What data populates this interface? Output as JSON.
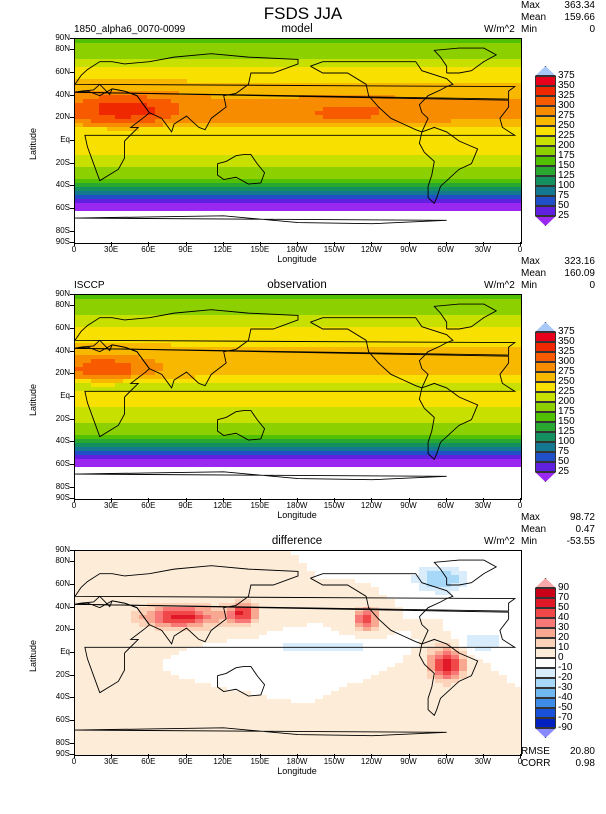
{
  "title": "FSDS JJA",
  "x_axis": {
    "label": "Longitude",
    "ticks": [
      "0",
      "30E",
      "60E",
      "90E",
      "120E",
      "150E",
      "180W",
      "150W",
      "120W",
      "90W",
      "60W",
      "30W",
      "0"
    ]
  },
  "y_axis": {
    "label": "Latitude",
    "ticks": [
      "90N",
      "80N",
      "60N",
      "40N",
      "20N",
      "Eq",
      "20S",
      "40S",
      "60S",
      "80S",
      "90S"
    ],
    "tick_lats": [
      90,
      80,
      60,
      40,
      20,
      0,
      -20,
      -40,
      -60,
      -80,
      -90
    ]
  },
  "panels": [
    {
      "id": "model",
      "left_label": "1850_alpha6_0070-0099",
      "title": "model",
      "units": "W/m^2",
      "stats": {
        "max_label": "Max",
        "max": "363.34",
        "mean_label": "Mean",
        "mean": "159.66",
        "min_label": "Min",
        "min": "0"
      },
      "colorbar": {
        "labels": [
          "375",
          "350",
          "325",
          "300",
          "275",
          "250",
          "225",
          "200",
          "175",
          "150",
          "125",
          "100",
          "75",
          "50",
          "25"
        ],
        "colors": [
          "#a8c8f8",
          "#e8001c",
          "#f02800",
          "#f85a00",
          "#f88c00",
          "#f8b800",
          "#f8e000",
          "#c8e000",
          "#8cd000",
          "#50c000",
          "#28a830",
          "#149060",
          "#147890",
          "#2050c8",
          "#6020e0",
          "#9a28f0"
        ]
      },
      "field": "model"
    },
    {
      "id": "observation",
      "left_label": "ISCCP",
      "title": "observation",
      "units": "W/m^2",
      "stats": {
        "max_label": "Max",
        "max": "323.16",
        "mean_label": "Mean",
        "mean": "160.09",
        "min_label": "Min",
        "min": "0"
      },
      "colorbar": {
        "labels": [
          "375",
          "350",
          "325",
          "300",
          "275",
          "250",
          "225",
          "200",
          "175",
          "150",
          "125",
          "100",
          "75",
          "50",
          "25"
        ],
        "colors": [
          "#a8c8f8",
          "#e8001c",
          "#f02800",
          "#f85a00",
          "#f88c00",
          "#f8b800",
          "#f8e000",
          "#c8e000",
          "#8cd000",
          "#50c000",
          "#28a830",
          "#149060",
          "#147890",
          "#2050c8",
          "#6020e0",
          "#9a28f0"
        ]
      },
      "field": "obs"
    },
    {
      "id": "difference",
      "left_label": "",
      "title": "difference",
      "units": "W/m^2",
      "stats": {
        "max_label": "Max",
        "max": "98.72",
        "mean_label": "Mean",
        "mean": "0.47",
        "min_label": "Min",
        "min": "-53.55"
      },
      "colorbar": {
        "labels": [
          "90",
          "70",
          "50",
          "40",
          "30",
          "20",
          "10",
          "0",
          "-10",
          "-20",
          "-30",
          "-40",
          "-50",
          "-70",
          "-90"
        ],
        "colors": [
          "#f8a8a8",
          "#c80018",
          "#e01828",
          "#f04848",
          "#f87878",
          "#f8a890",
          "#fcd2b8",
          "#fcecd8",
          "#ffffff",
          "#d8ecfc",
          "#a8d8f8",
          "#70b8f0",
          "#3c8ce8",
          "#1850d8",
          "#0020c0",
          "#8888ff"
        ]
      },
      "field": "diff",
      "footer": {
        "rmse_label": "RMSE",
        "rmse": "20.80",
        "corr_label": "CORR",
        "corr": "0.98"
      }
    }
  ]
}
